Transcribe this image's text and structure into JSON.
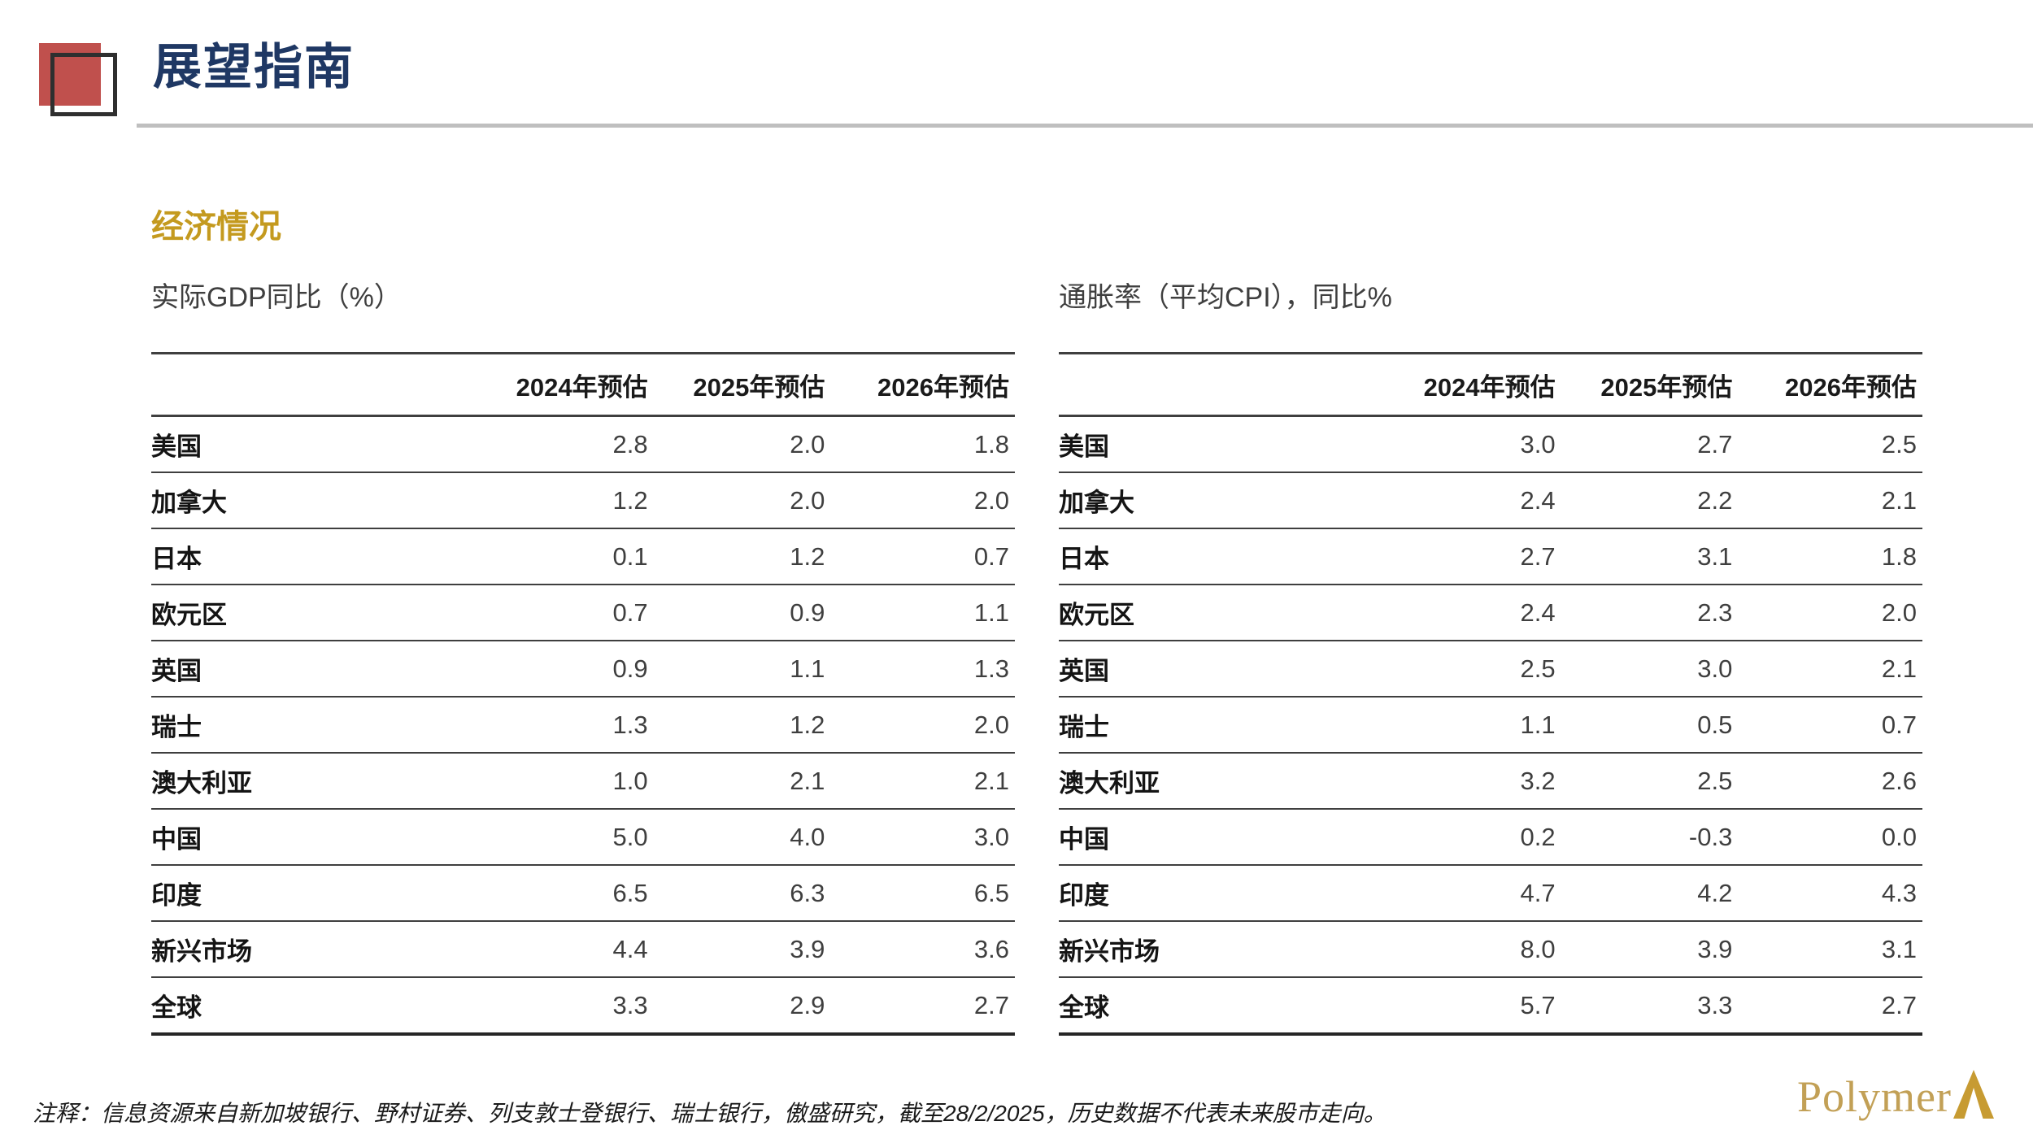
{
  "header": {
    "title": "展望指南"
  },
  "section": {
    "title": "经济情况"
  },
  "tables": [
    {
      "subtitle": "实际GDP同比（%）",
      "columns": [
        "2024年预估",
        "2025年预估",
        "2026年预估"
      ],
      "rows": [
        {
          "label": "美国",
          "values": [
            "2.8",
            "2.0",
            "1.8"
          ]
        },
        {
          "label": "加拿大",
          "values": [
            "1.2",
            "2.0",
            "2.0"
          ]
        },
        {
          "label": "日本",
          "values": [
            "0.1",
            "1.2",
            "0.7"
          ]
        },
        {
          "label": "欧元区",
          "values": [
            "0.7",
            "0.9",
            "1.1"
          ]
        },
        {
          "label": "英国",
          "values": [
            "0.9",
            "1.1",
            "1.3"
          ]
        },
        {
          "label": "瑞士",
          "values": [
            "1.3",
            "1.2",
            "2.0"
          ]
        },
        {
          "label": "澳大利亚",
          "values": [
            "1.0",
            "2.1",
            "2.1"
          ]
        },
        {
          "label": "中国",
          "values": [
            "5.0",
            "4.0",
            "3.0"
          ]
        },
        {
          "label": "印度",
          "values": [
            "6.5",
            "6.3",
            "6.5"
          ]
        },
        {
          "label": "新兴市场",
          "values": [
            "4.4",
            "3.9",
            "3.6"
          ]
        },
        {
          "label": "全球",
          "values": [
            "3.3",
            "2.9",
            "2.7"
          ]
        }
      ]
    },
    {
      "subtitle": "通胀率（平均CPI），同比%",
      "columns": [
        "2024年预估",
        "2025年预估",
        "2026年预估"
      ],
      "rows": [
        {
          "label": "美国",
          "values": [
            "3.0",
            "2.7",
            "2.5"
          ]
        },
        {
          "label": "加拿大",
          "values": [
            "2.4",
            "2.2",
            "2.1"
          ]
        },
        {
          "label": "日本",
          "values": [
            "2.7",
            "3.1",
            "1.8"
          ]
        },
        {
          "label": "欧元区",
          "values": [
            "2.4",
            "2.3",
            "2.0"
          ]
        },
        {
          "label": "英国",
          "values": [
            "2.5",
            "3.0",
            "2.1"
          ]
        },
        {
          "label": "瑞士",
          "values": [
            "1.1",
            "0.5",
            "0.7"
          ]
        },
        {
          "label": "澳大利亚",
          "values": [
            "3.2",
            "2.5",
            "2.6"
          ]
        },
        {
          "label": "中国",
          "values": [
            "0.2",
            "-0.3",
            "0.0"
          ]
        },
        {
          "label": "印度",
          "values": [
            "4.7",
            "4.2",
            "4.3"
          ]
        },
        {
          "label": "新兴市场",
          "values": [
            "8.0",
            "3.9",
            "3.1"
          ]
        },
        {
          "label": "全球",
          "values": [
            "5.7",
            "3.3",
            "2.7"
          ]
        }
      ]
    }
  ],
  "footnote": "注释：信息资源来自新加坡银行、野村证券、列支敦士登银行、瑞士银行，傲盛研究，截至28/2/2025，历史数据不代表未来股市走向。",
  "logo": {
    "text": "Polymer"
  },
  "colors": {
    "title_navy": "#1f3864",
    "accent_red": "#c0504d",
    "section_gold": "#c49a1f",
    "divider_gray": "#bfbfbf",
    "table_line": "#3f3f3f",
    "logo_gold": "#c2a056"
  }
}
